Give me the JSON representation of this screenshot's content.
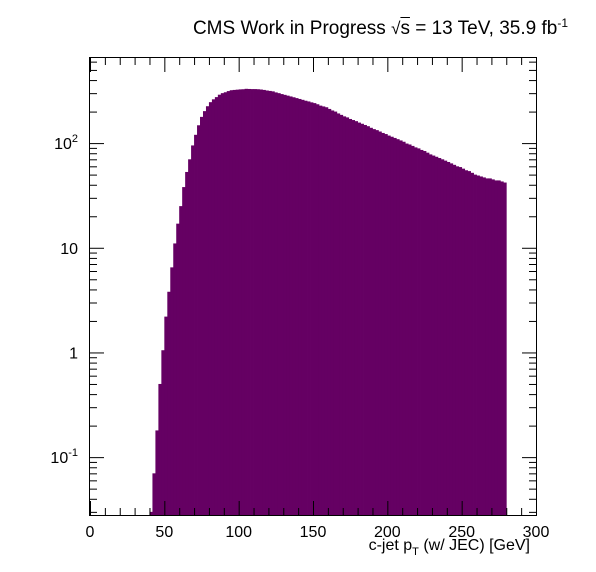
{
  "title": {
    "experiment": "CMS Work in Progress",
    "sqrt_symbol": "√",
    "sqrt_arg": "s",
    "energy": " = 13 TeV, 35.9 fb",
    "lumi_exp": "-1"
  },
  "xlabel": {
    "base": "c-jet p",
    "sub": "T",
    "rest": " (w/ JEC) [GeV]"
  },
  "colors": {
    "fill": "#650063",
    "axis": "#000000"
  },
  "chart_data": {
    "type": "bar",
    "histogram": true,
    "x_title": "c-jet p_T (w/ JEC) [GeV]",
    "xlim": [
      0,
      300
    ],
    "ylim": [
      0.028,
      650
    ],
    "yscale": "log",
    "bin_width": 2,
    "x_ticks": [
      0,
      50,
      100,
      150,
      200,
      250,
      300
    ],
    "x_tick_labels": [
      "0",
      "50",
      "100",
      "150",
      "200",
      "250",
      "300"
    ],
    "y_ticks": [
      0.1,
      1,
      10,
      100
    ],
    "y_tick_labels": [
      [
        "10",
        "-1"
      ],
      [
        "1",
        ""
      ],
      [
        "10",
        ""
      ],
      [
        "10",
        "2"
      ]
    ],
    "bin_edges_start": 0,
    "values": [
      0,
      0,
      0,
      0,
      0,
      0,
      0,
      0,
      0,
      0,
      0,
      0,
      0,
      0,
      0,
      0,
      0,
      0,
      0,
      0,
      0.03,
      0.07,
      0.18,
      0.5,
      1.05,
      2.2,
      3.8,
      6.5,
      11,
      17,
      25,
      38,
      53,
      70,
      95,
      120,
      148,
      178,
      202,
      225,
      246,
      262,
      275,
      290,
      300,
      306,
      314,
      320,
      322,
      324,
      326,
      327,
      330,
      329,
      328,
      328,
      327,
      325,
      322,
      318,
      315,
      312,
      305,
      300,
      294,
      289,
      284,
      279,
      274,
      269,
      264,
      259,
      254,
      250,
      245,
      241,
      235,
      228,
      224,
      220,
      212,
      205,
      200,
      192,
      186,
      180,
      176,
      170,
      166,
      162,
      157,
      153,
      149,
      145,
      140,
      136,
      133,
      129,
      125,
      122,
      118,
      115,
      112,
      109,
      106,
      103,
      99,
      97,
      94,
      91,
      89,
      86,
      84,
      81,
      78,
      76,
      74,
      72,
      70,
      68,
      66,
      64,
      62,
      60,
      59,
      57,
      55,
      54,
      52,
      50,
      49,
      48,
      47,
      46,
      46,
      45,
      44,
      44,
      43,
      42
    ]
  }
}
